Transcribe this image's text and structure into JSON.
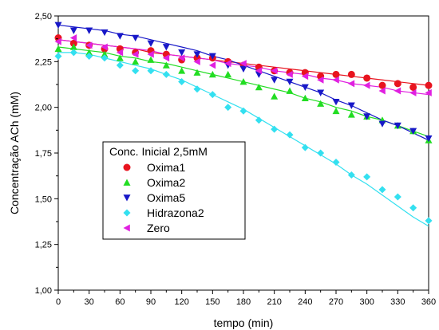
{
  "chart_data": {
    "type": "scatter",
    "xlabel": "tempo (min)",
    "ylabel": "Concentração ACh (mM)",
    "xlim": [
      0,
      360
    ],
    "ylim": [
      1.0,
      2.5
    ],
    "x_ticks": [
      "0",
      "30",
      "60",
      "90",
      "120",
      "150",
      "180",
      "210",
      "240",
      "270",
      "300",
      "330",
      "360"
    ],
    "y_ticks": [
      "1,00",
      "1,25",
      "1,50",
      "1,75",
      "2,00",
      "2,25",
      "2,50"
    ],
    "grid": false,
    "legend_position": "left-center",
    "legend_title": "Conc. Inicial 2,5mM",
    "x": [
      0,
      15,
      30,
      45,
      60,
      75,
      90,
      105,
      120,
      135,
      150,
      165,
      180,
      195,
      210,
      225,
      240,
      255,
      270,
      285,
      300,
      315,
      330,
      345,
      360
    ],
    "series": [
      {
        "name": "Oxima1",
        "marker": "circle",
        "color": "#e8141f",
        "values": [
          2.38,
          2.35,
          2.34,
          2.32,
          2.32,
          2.3,
          2.31,
          2.29,
          2.26,
          2.27,
          2.27,
          2.25,
          2.23,
          2.22,
          2.2,
          2.19,
          2.19,
          2.17,
          2.18,
          2.18,
          2.16,
          2.12,
          2.13,
          2.11,
          2.12
        ],
        "fit": [
          2.37,
          2.36,
          2.35,
          2.34,
          2.33,
          2.32,
          2.3,
          2.29,
          2.28,
          2.27,
          2.26,
          2.25,
          2.24,
          2.23,
          2.22,
          2.21,
          2.2,
          2.19,
          2.18,
          2.17,
          2.16,
          2.15,
          2.14,
          2.13,
          2.12
        ]
      },
      {
        "name": "Oxima2",
        "marker": "triangle-up",
        "color": "#22dd22",
        "values": [
          2.32,
          2.33,
          2.3,
          2.29,
          2.27,
          2.25,
          2.26,
          2.23,
          2.2,
          2.19,
          2.18,
          2.18,
          2.14,
          2.11,
          2.06,
          2.09,
          2.05,
          2.02,
          1.98,
          1.96,
          1.95,
          1.93,
          1.9,
          1.87,
          1.82
        ],
        "fit": [
          2.33,
          2.32,
          2.31,
          2.3,
          2.28,
          2.27,
          2.25,
          2.24,
          2.22,
          2.2,
          2.18,
          2.16,
          2.14,
          2.12,
          2.1,
          2.08,
          2.05,
          2.03,
          2.0,
          1.98,
          1.95,
          1.93,
          1.9,
          1.87,
          1.84
        ]
      },
      {
        "name": "Oxima5",
        "marker": "triangle-down",
        "color": "#1818c8",
        "values": [
          2.45,
          2.42,
          2.42,
          2.41,
          2.39,
          2.38,
          2.35,
          2.33,
          2.3,
          2.29,
          2.28,
          2.23,
          2.21,
          2.18,
          2.15,
          2.14,
          2.11,
          2.08,
          2.03,
          2.01,
          1.95,
          1.91,
          1.9,
          1.87,
          1.83
        ],
        "fit": [
          2.45,
          2.44,
          2.43,
          2.42,
          2.4,
          2.39,
          2.37,
          2.35,
          2.33,
          2.31,
          2.28,
          2.26,
          2.23,
          2.2,
          2.17,
          2.14,
          2.11,
          2.08,
          2.04,
          2.01,
          1.97,
          1.93,
          1.9,
          1.86,
          1.82
        ]
      },
      {
        "name": "Hidrazona2",
        "marker": "diamond",
        "color": "#33e0f0",
        "values": [
          2.28,
          2.3,
          2.28,
          2.27,
          2.23,
          2.2,
          2.2,
          2.18,
          2.14,
          2.1,
          2.07,
          2.0,
          1.98,
          1.93,
          1.88,
          1.85,
          1.78,
          1.75,
          1.7,
          1.63,
          1.62,
          1.55,
          1.51,
          1.45,
          1.38
        ],
        "fit": [
          2.3,
          2.3,
          2.29,
          2.27,
          2.25,
          2.23,
          2.21,
          2.18,
          2.15,
          2.11,
          2.07,
          2.03,
          1.99,
          1.94,
          1.89,
          1.84,
          1.79,
          1.74,
          1.69,
          1.63,
          1.58,
          1.52,
          1.46,
          1.4,
          1.35
        ]
      },
      {
        "name": "Zero",
        "marker": "triangle-left",
        "color": "#e020e0",
        "values": [
          2.36,
          2.38,
          2.34,
          2.33,
          2.3,
          2.29,
          2.29,
          2.27,
          2.27,
          2.25,
          2.23,
          2.24,
          2.24,
          2.2,
          2.2,
          2.18,
          2.17,
          2.15,
          2.15,
          2.13,
          2.12,
          2.09,
          2.09,
          2.08,
          2.08
        ],
        "fit": [
          2.37,
          2.36,
          2.35,
          2.34,
          2.33,
          2.32,
          2.31,
          2.29,
          2.28,
          2.27,
          2.26,
          2.24,
          2.23,
          2.22,
          2.2,
          2.19,
          2.18,
          2.16,
          2.15,
          2.13,
          2.12,
          2.11,
          2.09,
          2.08,
          2.07
        ]
      }
    ]
  }
}
